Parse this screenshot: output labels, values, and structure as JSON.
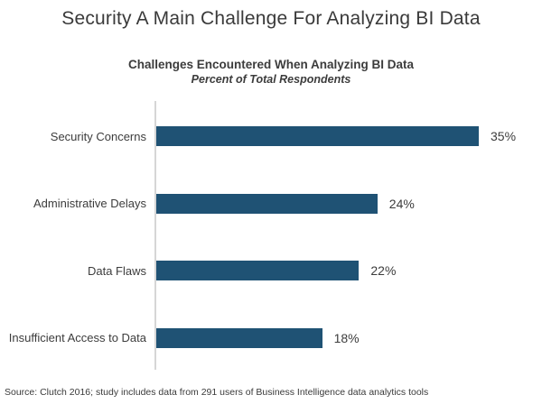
{
  "chart_data": {
    "type": "bar",
    "orientation": "horizontal",
    "title": "Security A Main Challenge For Analyzing BI Data",
    "subtitle": "Challenges Encountered When Analyzing BI Data",
    "subtitle_note": "Percent of Total Respondents",
    "categories": [
      "Security Concerns",
      "Administrative Delays",
      "Data Flaws",
      "Insufficient Access to Data"
    ],
    "values": [
      35,
      24,
      22,
      18
    ],
    "value_labels": [
      "35%",
      "24%",
      "22%",
      "18%"
    ],
    "xlim": [
      0,
      35
    ],
    "grid": "off",
    "legend": "none",
    "bar_color": "#1F5274",
    "axis_line_color": "#D6D6D6",
    "text_color": "#3B3B3B",
    "source": "Source: Clutch 2016; study includes data from 291 users of Business Intelligence data analytics tools"
  }
}
